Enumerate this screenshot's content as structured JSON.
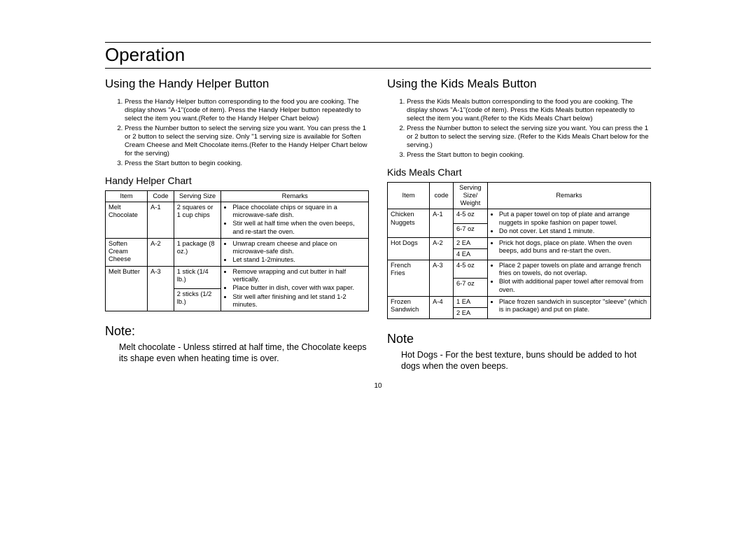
{
  "title": "Operation",
  "page_number": "10",
  "left": {
    "heading": "Using the Handy Helper Button",
    "steps": [
      "Press the Handy Helper  button corresponding to the food you are cooking. The display shows \"A-1\"(code of item).  Press the Handy Helper  button repeatedly to select the item you want.(Refer to the Handy Helper Chart   below)",
      "Press the Number  button to select the serving size you want. You can press the 1 or 2 button to select the serving size. Only \"1 serving size is available for Soften Cream Cheese and Melt Chocolate items.(Refer to the Handy Helper Chart   below for the serving)",
      "Press the Start  button to begin cooking."
    ],
    "chart_title": "Handy Helper Chart",
    "headers": {
      "c1": "Item",
      "c2": "Code",
      "c3": "Serving Size",
      "c4": "Remarks"
    },
    "rows": [
      {
        "item": "Melt Chocolate",
        "code": "A-1",
        "sizes": [
          "2 squares or 1 cup chips"
        ],
        "remarks": [
          "Place chocolate chips or square in a microwave-safe dish.",
          "Stir well at half time when the oven beeps, and re-start the oven."
        ]
      },
      {
        "item": "Soften Cream Cheese",
        "code": "A-2",
        "sizes": [
          "1 package (8 oz.)"
        ],
        "remarks": [
          "Unwrap cream cheese and place on microwave-safe dish.",
          "Let stand 1-2minutes."
        ]
      },
      {
        "item": "Melt Butter",
        "code": "A-3",
        "sizes": [
          "1 stick (1/4 lb.)",
          "2 sticks (1/2 lb.)"
        ],
        "remarks": [
          "Remove wrapping and cut butter in half vertically.",
          "Place butter in dish, cover with wax paper.",
          "Stir well after finishing and let stand 1-2 minutes."
        ]
      }
    ],
    "note_head": "Note:",
    "note_body": "Melt chocolate   - Unless stirred at half time, the Chocolate keeps its shape even when heating time is over."
  },
  "right": {
    "heading": "Using the Kids Meals Button",
    "steps": [
      "Press the Kids Meals  button corresponding to the food you are cooking. The display shows \"A-1\"(code of item). Press the Kids Meals  button repeatedly to select the item you want.(Refer to the Kids Meals Chart   below)",
      "Press the Number  button to select the serving size you want. You can press the 1 or 2 button to select the serving size. (Refer to the Kids Meals Chart   below for the serving.)",
      "Press the Start  button to begin cooking."
    ],
    "chart_title": "Kids Meals Chart",
    "headers": {
      "c1": "Item",
      "c2": "code",
      "c3": "Serving Size/ Weight",
      "c4": "Remarks"
    },
    "rows": [
      {
        "item": "Chicken Nuggets",
        "code": "A-1",
        "sizes": [
          "4-5 oz",
          "6-7 oz"
        ],
        "remarks": [
          "Put a paper towel on top of plate and arrange nuggets in spoke fashion on paper towel.",
          "Do not cover. Let stand 1 minute."
        ]
      },
      {
        "item": "Hot Dogs",
        "code": "A-2",
        "sizes": [
          "2 EA",
          "4 EA"
        ],
        "remarks": [
          "Prick hot dogs, place on plate. When the oven beeps, add buns and re-start the oven."
        ]
      },
      {
        "item": "French Fries",
        "code": "A-3",
        "sizes": [
          "4-5 oz",
          "6-7 oz"
        ],
        "remarks": [
          "Place 2 paper towels on plate and arrange french fries on towels, do not overlap.",
          "Blot with additional paper towel after removal from oven."
        ]
      },
      {
        "item": "Frozen Sandwich",
        "code": "A-4",
        "sizes": [
          "1 EA",
          "2 EA"
        ],
        "remarks": [
          "Place frozen sandwich in susceptor \"sleeve\" (which is in package) and put on plate."
        ]
      }
    ],
    "note_head": "Note",
    "note_body": "Hot Dogs  -  For the best texture, buns should be added to hot dogs when the oven beeps."
  }
}
